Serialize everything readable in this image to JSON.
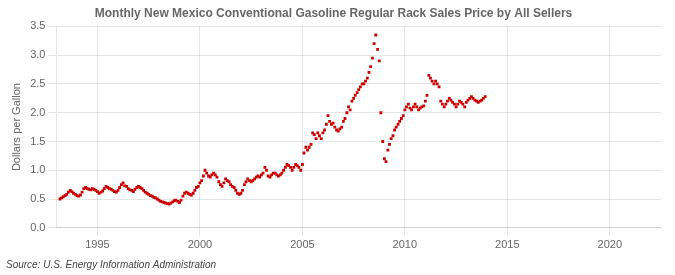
{
  "chart_data": {
    "type": "scatter",
    "title": "Monthly New Mexico Conventional Gasoline Regular Rack Sales Price by All Sellers",
    "ylabel": "Dollars per Gallon",
    "annotation": "Source: U.S. Energy Information Administration",
    "color": "#cc0000",
    "marker": "square",
    "grid": true,
    "xlim": [
      1993.0,
      2022.5
    ],
    "ylim": [
      0.0,
      3.5
    ],
    "xticks": [
      1995,
      2000,
      2005,
      2010,
      2015,
      2020
    ],
    "yticks": [
      {
        "value": 0,
        "label": "0.0"
      },
      0.5,
      {
        "value": 1,
        "label": "1.0"
      },
      1.5,
      {
        "value": 2,
        "label": "2.0"
      },
      2.5,
      {
        "value": 3,
        "label": "3.0"
      },
      3.5
    ],
    "x": [
      1993.17,
      1993.25,
      1993.33,
      1993.42,
      1993.5,
      1993.58,
      1993.67,
      1993.75,
      1993.83,
      1993.92,
      1994.0,
      1994.08,
      1994.17,
      1994.25,
      1994.33,
      1994.42,
      1994.5,
      1994.58,
      1994.67,
      1994.75,
      1994.83,
      1994.92,
      1995.0,
      1995.08,
      1995.17,
      1995.25,
      1995.33,
      1995.42,
      1995.5,
      1995.58,
      1995.67,
      1995.75,
      1995.83,
      1995.92,
      1996.0,
      1996.08,
      1996.17,
      1996.25,
      1996.33,
      1996.42,
      1996.5,
      1996.58,
      1996.67,
      1996.75,
      1996.83,
      1996.92,
      1997.0,
      1997.08,
      1997.17,
      1997.25,
      1997.33,
      1997.42,
      1997.5,
      1997.58,
      1997.67,
      1997.75,
      1997.83,
      1997.92,
      1998.0,
      1998.08,
      1998.17,
      1998.25,
      1998.33,
      1998.42,
      1998.5,
      1998.58,
      1998.67,
      1998.75,
      1998.83,
      1998.92,
      1999.0,
      1999.08,
      1999.17,
      1999.25,
      1999.33,
      1999.42,
      1999.5,
      1999.58,
      1999.67,
      1999.75,
      1999.83,
      1999.92,
      2000.0,
      2000.08,
      2000.17,
      2000.25,
      2000.33,
      2000.42,
      2000.5,
      2000.58,
      2000.67,
      2000.75,
      2000.83,
      2000.92,
      2001.0,
      2001.08,
      2001.17,
      2001.25,
      2001.33,
      2001.42,
      2001.5,
      2001.58,
      2001.67,
      2001.75,
      2001.83,
      2001.92,
      2002.0,
      2002.08,
      2002.17,
      2002.25,
      2002.33,
      2002.42,
      2002.5,
      2002.58,
      2002.67,
      2002.75,
      2002.83,
      2002.92,
      2003.0,
      2003.08,
      2003.17,
      2003.25,
      2003.33,
      2003.42,
      2003.5,
      2003.58,
      2003.67,
      2003.75,
      2003.83,
      2003.92,
      2004.0,
      2004.08,
      2004.17,
      2004.25,
      2004.33,
      2004.42,
      2004.5,
      2004.58,
      2004.67,
      2004.75,
      2004.83,
      2004.92,
      2005.0,
      2005.08,
      2005.17,
      2005.25,
      2005.33,
      2005.42,
      2005.5,
      2005.58,
      2005.67,
      2005.75,
      2005.83,
      2005.92,
      2006.0,
      2006.08,
      2006.17,
      2006.25,
      2006.33,
      2006.42,
      2006.5,
      2006.58,
      2006.67,
      2006.75,
      2006.83,
      2006.92,
      2007.0,
      2007.08,
      2007.17,
      2007.25,
      2007.33,
      2007.42,
      2007.5,
      2007.58,
      2007.67,
      2007.75,
      2007.83,
      2007.92,
      2008.0,
      2008.08,
      2008.17,
      2008.25,
      2008.33,
      2008.42,
      2008.5,
      2008.58,
      2008.67,
      2008.75,
      2008.83,
      2008.92,
      2009.0,
      2009.08,
      2009.17,
      2009.25,
      2009.33,
      2009.42,
      2009.5,
      2009.58,
      2009.67,
      2009.75,
      2009.83,
      2009.92,
      2010.0,
      2010.08,
      2010.17,
      2010.25,
      2010.33,
      2010.42,
      2010.5,
      2010.58,
      2010.67,
      2010.75,
      2010.83,
      2010.92,
      2011.0,
      2011.08,
      2011.17,
      2011.25,
      2011.33,
      2011.42,
      2011.5,
      2011.58,
      2011.67,
      2011.75,
      2011.83,
      2011.92,
      2012.0,
      2012.08,
      2012.17,
      2012.25,
      2012.33,
      2012.42,
      2012.5,
      2012.58,
      2012.67,
      2012.75,
      2012.83,
      2012.92,
      2013.0,
      2013.08,
      2013.17,
      2013.25,
      2013.33,
      2013.42,
      2013.5,
      2013.58,
      2013.67,
      2013.75,
      2013.83,
      2013.92
    ],
    "values": [
      0.5,
      0.52,
      0.54,
      0.56,
      0.58,
      0.62,
      0.65,
      0.63,
      0.6,
      0.58,
      0.56,
      0.55,
      0.57,
      0.62,
      0.68,
      0.7,
      0.68,
      0.67,
      0.66,
      0.68,
      0.67,
      0.65,
      0.63,
      0.6,
      0.62,
      0.64,
      0.68,
      0.72,
      0.7,
      0.68,
      0.67,
      0.65,
      0.63,
      0.62,
      0.65,
      0.7,
      0.75,
      0.78,
      0.73,
      0.72,
      0.68,
      0.66,
      0.65,
      0.63,
      0.67,
      0.7,
      0.72,
      0.7,
      0.68,
      0.65,
      0.62,
      0.6,
      0.58,
      0.56,
      0.55,
      0.53,
      0.52,
      0.5,
      0.48,
      0.46,
      0.45,
      0.44,
      0.43,
      0.42,
      0.41,
      0.43,
      0.45,
      0.47,
      0.48,
      0.46,
      0.44,
      0.48,
      0.55,
      0.6,
      0.62,
      0.6,
      0.58,
      0.57,
      0.6,
      0.65,
      0.7,
      0.72,
      0.78,
      0.82,
      0.9,
      1.0,
      0.95,
      0.9,
      0.88,
      0.92,
      0.95,
      0.92,
      0.88,
      0.8,
      0.75,
      0.72,
      0.78,
      0.85,
      0.82,
      0.8,
      0.75,
      0.72,
      0.7,
      0.65,
      0.6,
      0.58,
      0.6,
      0.65,
      0.75,
      0.8,
      0.85,
      0.82,
      0.8,
      0.82,
      0.85,
      0.88,
      0.9,
      0.88,
      0.92,
      0.95,
      1.05,
      1.0,
      0.9,
      0.88,
      0.92,
      0.95,
      0.95,
      0.92,
      0.9,
      0.92,
      0.95,
      1.0,
      1.05,
      1.1,
      1.08,
      1.05,
      1.0,
      1.05,
      1.1,
      1.08,
      1.05,
      1.0,
      1.1,
      1.3,
      1.4,
      1.35,
      1.4,
      1.45,
      1.65,
      1.62,
      1.55,
      1.65,
      1.6,
      1.55,
      1.65,
      1.7,
      1.8,
      1.95,
      1.85,
      1.8,
      1.82,
      1.75,
      1.7,
      1.68,
      1.72,
      1.75,
      1.85,
      1.9,
      2.0,
      2.1,
      2.05,
      2.2,
      2.25,
      2.3,
      2.35,
      2.4,
      2.45,
      2.5,
      2.5,
      2.55,
      2.6,
      2.7,
      2.8,
      2.95,
      3.2,
      3.35,
      3.1,
      2.9,
      2.0,
      1.5,
      1.2,
      1.15,
      1.35,
      1.45,
      1.55,
      1.6,
      1.7,
      1.75,
      1.8,
      1.85,
      1.9,
      1.95,
      2.05,
      2.1,
      2.15,
      2.08,
      2.05,
      2.1,
      2.15,
      2.1,
      2.05,
      2.08,
      2.1,
      2.12,
      2.2,
      2.3,
      2.65,
      2.6,
      2.55,
      2.5,
      2.55,
      2.5,
      2.45,
      2.2,
      2.15,
      2.1,
      2.15,
      2.2,
      2.25,
      2.22,
      2.18,
      2.15,
      2.1,
      2.15,
      2.2,
      2.18,
      2.15,
      2.1,
      2.18,
      2.22,
      2.25,
      2.28,
      2.25,
      2.22,
      2.2,
      2.18,
      2.2,
      2.22,
      2.25,
      2.28
    ]
  }
}
